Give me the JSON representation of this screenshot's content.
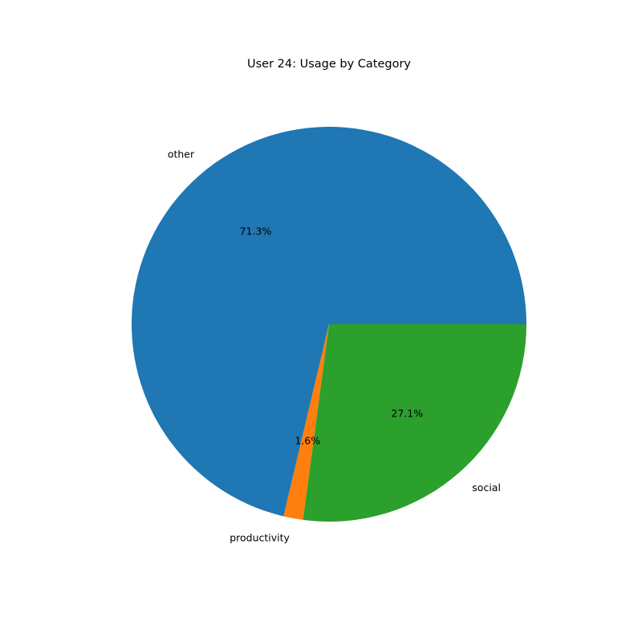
{
  "chart_data": {
    "type": "pie",
    "title": "User 24: Usage by Category",
    "slices": [
      {
        "label": "other",
        "value": 71.3,
        "pct_label": "71.3%",
        "color": "#1f77b4"
      },
      {
        "label": "productivity",
        "value": 1.6,
        "pct_label": "1.6%",
        "color": "#ff7f0e"
      },
      {
        "label": "social",
        "value": 27.1,
        "pct_label": "27.1%",
        "color": "#2ca02c"
      }
    ],
    "start_angle_deg": 0,
    "direction": "counterclockwise",
    "legend": "none"
  }
}
